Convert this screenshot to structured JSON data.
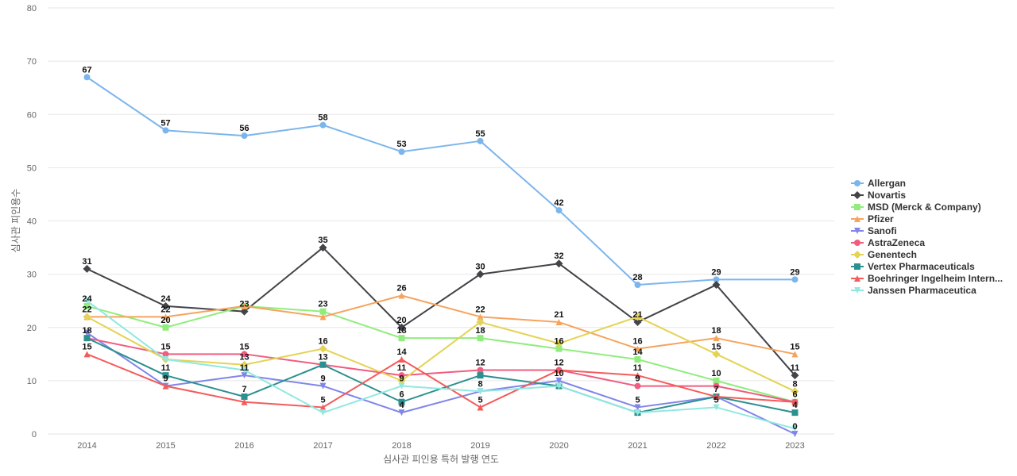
{
  "chart_data": {
    "type": "line",
    "xlabel": "심사관 피인용 특허 발행 연도",
    "ylabel": "심사관 피인용수",
    "categories": [
      "2014",
      "2015",
      "2016",
      "2017",
      "2018",
      "2019",
      "2020",
      "2021",
      "2022",
      "2023"
    ],
    "ylim": [
      0,
      80
    ],
    "yticks": [
      0,
      10,
      20,
      30,
      40,
      50,
      60,
      70,
      80
    ],
    "grid": true,
    "legend_position": "right",
    "series": [
      {
        "name": "Allergan",
        "color": "#7cb5ec",
        "marker": "circle",
        "values": [
          67,
          57,
          56,
          58,
          53,
          55,
          42,
          28,
          29,
          29
        ]
      },
      {
        "name": "Novartis",
        "color": "#434348",
        "marker": "diamond",
        "values": [
          31,
          24,
          23,
          35,
          20,
          30,
          32,
          21,
          28,
          11
        ]
      },
      {
        "name": "MSD (Merck & Company)",
        "color": "#90ed7d",
        "marker": "square",
        "values": [
          24,
          20,
          24,
          23,
          18,
          18,
          16,
          14,
          10,
          6
        ]
      },
      {
        "name": "Pfizer",
        "color": "#f7a35c",
        "marker": "triangle",
        "values": [
          22,
          22,
          24,
          22,
          26,
          22,
          21,
          16,
          18,
          15
        ]
      },
      {
        "name": "Sanofi",
        "color": "#8085e9",
        "marker": "triangle-down",
        "values": [
          19,
          9,
          11,
          9,
          4,
          8,
          10,
          5,
          7,
          0
        ]
      },
      {
        "name": "AstraZeneca",
        "color": "#f15c80",
        "marker": "circle",
        "values": [
          18,
          15,
          15,
          13,
          11,
          12,
          12,
          9,
          9,
          6
        ]
      },
      {
        "name": "Genentech",
        "color": "#e4d354",
        "marker": "diamond",
        "values": [
          22,
          14,
          13,
          16,
          10,
          21,
          17,
          22,
          15,
          8
        ]
      },
      {
        "name": "Vertex Pharmaceuticals",
        "color": "#2b908f",
        "marker": "square",
        "values": [
          18,
          11,
          7,
          13,
          6,
          11,
          9,
          4,
          7,
          4
        ]
      },
      {
        "name": "Boehringer Ingelheim Intern...",
        "color": "#f45b5b",
        "marker": "triangle",
        "values": [
          15,
          9,
          6,
          5,
          14,
          5,
          12,
          11,
          7,
          6
        ]
      },
      {
        "name": "Janssen Pharmaceutica",
        "color": "#91e8e1",
        "marker": "triangle-down",
        "values": [
          25,
          14,
          12,
          4,
          9,
          8,
          9,
          4,
          5,
          1
        ]
      }
    ],
    "data_labels": [
      {
        "x": "2014",
        "value": "67"
      },
      {
        "x": "2014",
        "value": "31"
      },
      {
        "x": "2014",
        "value": "24"
      },
      {
        "x": "2014",
        "value": "22"
      },
      {
        "x": "2014",
        "value": "18"
      },
      {
        "x": "2014",
        "value": "15"
      },
      {
        "x": "2015",
        "value": "57"
      },
      {
        "x": "2015",
        "value": "24"
      },
      {
        "x": "2015",
        "value": "22"
      },
      {
        "x": "2015",
        "value": "20"
      },
      {
        "x": "2015",
        "value": "15"
      },
      {
        "x": "2015",
        "value": "11"
      },
      {
        "x": "2015",
        "value": "9"
      },
      {
        "x": "2016",
        "value": "56"
      },
      {
        "x": "2016",
        "value": "23"
      },
      {
        "x": "2016",
        "value": "15"
      },
      {
        "x": "2016",
        "value": "13"
      },
      {
        "x": "2016",
        "value": "11"
      },
      {
        "x": "2016",
        "value": "7"
      },
      {
        "x": "2017",
        "value": "58"
      },
      {
        "x": "2017",
        "value": "35"
      },
      {
        "x": "2017",
        "value": "23"
      },
      {
        "x": "2017",
        "value": "16"
      },
      {
        "x": "2017",
        "value": "13"
      },
      {
        "x": "2017",
        "value": "9"
      },
      {
        "x": "2017",
        "value": "5"
      },
      {
        "x": "2018",
        "value": "53"
      },
      {
        "x": "2018",
        "value": "26"
      },
      {
        "x": "2018",
        "value": "20"
      },
      {
        "x": "2018",
        "value": "18"
      },
      {
        "x": "2018",
        "value": "14"
      },
      {
        "x": "2018",
        "value": "11"
      },
      {
        "x": "2018",
        "value": "9"
      },
      {
        "x": "2018",
        "value": "6"
      },
      {
        "x": "2018",
        "value": "4"
      },
      {
        "x": "2019",
        "value": "55"
      },
      {
        "x": "2019",
        "value": "30"
      },
      {
        "x": "2019",
        "value": "22"
      },
      {
        "x": "2019",
        "value": "18"
      },
      {
        "x": "2019",
        "value": "12"
      },
      {
        "x": "2019",
        "value": "8"
      },
      {
        "x": "2019",
        "value": "5"
      },
      {
        "x": "2020",
        "value": "42"
      },
      {
        "x": "2020",
        "value": "32"
      },
      {
        "x": "2020",
        "value": "21"
      },
      {
        "x": "2020",
        "value": "16"
      },
      {
        "x": "2020",
        "value": "12"
      },
      {
        "x": "2020",
        "value": "10"
      },
      {
        "x": "2021",
        "value": "28"
      },
      {
        "x": "2021",
        "value": "21"
      },
      {
        "x": "2021",
        "value": "16"
      },
      {
        "x": "2021",
        "value": "14"
      },
      {
        "x": "2021",
        "value": "11"
      },
      {
        "x": "2021",
        "value": "9"
      },
      {
        "x": "2021",
        "value": "5"
      },
      {
        "x": "2022",
        "value": "29"
      },
      {
        "x": "2022",
        "value": "18"
      },
      {
        "x": "2022",
        "value": "15"
      },
      {
        "x": "2022",
        "value": "10"
      },
      {
        "x": "2022",
        "value": "7"
      },
      {
        "x": "2022",
        "value": "5"
      },
      {
        "x": "2023",
        "value": "29"
      },
      {
        "x": "2023",
        "value": "15"
      },
      {
        "x": "2023",
        "value": "11"
      },
      {
        "x": "2023",
        "value": "8"
      },
      {
        "x": "2023",
        "value": "6"
      },
      {
        "x": "2023",
        "value": "4"
      },
      {
        "x": "2023",
        "value": "0"
      }
    ]
  }
}
